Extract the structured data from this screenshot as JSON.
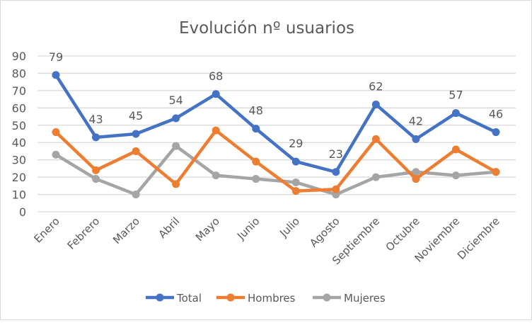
{
  "chart_data": {
    "type": "line",
    "title": "Evolución nº usuarios",
    "categories": [
      "Enero",
      "Febrero",
      "Marzo",
      "Abril",
      "Mayo",
      "Junio",
      "Julio",
      "Agosto",
      "Septiembre",
      "Octubre",
      "Noviembre",
      "Diciembre"
    ],
    "series": [
      {
        "name": "Total",
        "color": "#4472c4",
        "values": [
          79,
          43,
          45,
          54,
          68,
          48,
          29,
          23,
          62,
          42,
          57,
          46
        ],
        "data_labels": true
      },
      {
        "name": "Hombres",
        "color": "#ed7d31",
        "values": [
          46,
          24,
          35,
          16,
          47,
          29,
          12,
          13,
          42,
          19,
          36,
          23
        ],
        "data_labels": false
      },
      {
        "name": "Mujeres",
        "color": "#a5a5a5",
        "values": [
          33,
          19,
          10,
          38,
          21,
          19,
          17,
          10,
          20,
          23,
          21,
          23
        ],
        "data_labels": false
      }
    ],
    "ylim": [
      0,
      90
    ],
    "yticks": [
      0,
      10,
      20,
      30,
      40,
      50,
      60,
      70,
      80,
      90
    ],
    "grid": true,
    "legend": "bottom"
  }
}
